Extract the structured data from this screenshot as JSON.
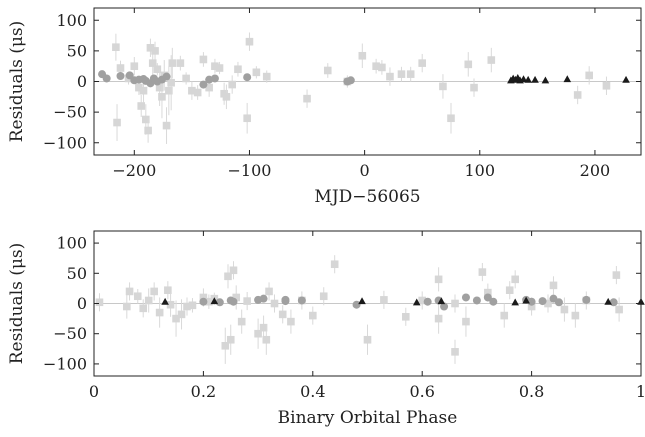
{
  "chart_data": [
    {
      "type": "scatter",
      "xlabel": "MJD−56065",
      "ylabel": "Residuals (μs)",
      "xlim": [
        -235,
        240
      ],
      "ylim": [
        -120,
        120
      ],
      "xticks": [
        -200,
        -100,
        0,
        100,
        200
      ],
      "xtick_labels": [
        "−200",
        "−100",
        "0",
        "100",
        "200"
      ],
      "yticks": [
        -100,
        -50,
        0,
        50,
        100
      ],
      "ytick_labels": [
        "−100",
        "−50",
        "0",
        "50",
        "100"
      ],
      "grid": false,
      "series": [
        {
          "marker": "square",
          "color": "#d6d6d6",
          "points": [
            [
              -216,
              56,
              22
            ],
            [
              -215,
              -67,
              30
            ],
            [
              -212,
              22,
              12
            ],
            [
              -205,
              5,
              10
            ],
            [
              -200,
              25,
              15
            ],
            [
              -196,
              -10,
              12
            ],
            [
              -194,
              -40,
              18
            ],
            [
              -192,
              -15,
              20
            ],
            [
              -190,
              -62,
              25
            ],
            [
              -188,
              -80,
              20
            ],
            [
              -186,
              55,
              15
            ],
            [
              -184,
              30,
              20
            ],
            [
              -182,
              50,
              15
            ],
            [
              -180,
              20,
              10
            ],
            [
              -178,
              -10,
              30
            ],
            [
              -176,
              -25,
              35
            ],
            [
              -174,
              10,
              25
            ],
            [
              -172,
              -72,
              30
            ],
            [
              -170,
              -15,
              40
            ],
            [
              -168,
              -2,
              45
            ],
            [
              -167,
              30,
              25
            ],
            [
              -160,
              30,
              12
            ],
            [
              -155,
              5,
              10
            ],
            [
              -150,
              -15,
              15
            ],
            [
              -145,
              -18,
              12
            ],
            [
              -140,
              36,
              12
            ],
            [
              -135,
              -10,
              15
            ],
            [
              -130,
              25,
              12
            ],
            [
              -126,
              22,
              10
            ],
            [
              -122,
              -20,
              18
            ],
            [
              -120,
              -25,
              20
            ],
            [
              -115,
              -5,
              15
            ],
            [
              -110,
              20,
              12
            ],
            [
              -102,
              -60,
              25
            ],
            [
              -100,
              65,
              15
            ],
            [
              -94,
              15,
              10
            ],
            [
              -85,
              8,
              10
            ],
            [
              -50,
              -28,
              15
            ],
            [
              -32,
              18,
              12
            ],
            [
              -15,
              0,
              10
            ],
            [
              -2,
              42,
              20
            ],
            [
              10,
              25,
              12
            ],
            [
              15,
              23,
              12
            ],
            [
              22,
              8,
              15
            ],
            [
              32,
              12,
              12
            ],
            [
              40,
              12,
              12
            ],
            [
              50,
              30,
              15
            ],
            [
              68,
              -8,
              20
            ],
            [
              75,
              -60,
              25
            ],
            [
              90,
              28,
              20
            ],
            [
              95,
              -10,
              15
            ],
            [
              110,
              35,
              20
            ],
            [
              185,
              -22,
              15
            ],
            [
              195,
              10,
              15
            ],
            [
              210,
              -7,
              15
            ]
          ]
        },
        {
          "marker": "circle",
          "color": "#a0a0a0",
          "points": [
            [
              -228,
              12,
              6
            ],
            [
              -224,
              5,
              6
            ],
            [
              -212,
              9,
              6
            ],
            [
              -204,
              10,
              6
            ],
            [
              -200,
              2,
              6
            ],
            [
              -196,
              3,
              6
            ],
            [
              -192,
              4,
              6
            ],
            [
              -190,
              1,
              6
            ],
            [
              -186,
              -3,
              6
            ],
            [
              -183,
              5,
              6
            ],
            [
              -180,
              0,
              6
            ],
            [
              -176,
              3,
              6
            ],
            [
              -172,
              8,
              6
            ],
            [
              -140,
              -5,
              6
            ],
            [
              -135,
              3,
              6
            ],
            [
              -130,
              5,
              6
            ],
            [
              -102,
              7,
              6
            ],
            [
              -15,
              0,
              6
            ],
            [
              -12,
              2,
              6
            ]
          ]
        },
        {
          "marker": "triangle",
          "color": "#1a1a1a",
          "points": [
            [
              127,
              2,
              3
            ],
            [
              129,
              5,
              3
            ],
            [
              131,
              3,
              3
            ],
            [
              133,
              6,
              3
            ],
            [
              135,
              2,
              3
            ],
            [
              138,
              4,
              3
            ],
            [
              142,
              3,
              3
            ],
            [
              148,
              3,
              3
            ],
            [
              157,
              2,
              3
            ],
            [
              176,
              4,
              3
            ],
            [
              227,
              3,
              3
            ]
          ]
        }
      ]
    },
    {
      "type": "scatter",
      "xlabel": "Binary Orbital Phase",
      "ylabel": "Residuals (μs)",
      "xlim": [
        0,
        1
      ],
      "ylim": [
        -120,
        120
      ],
      "xticks": [
        0,
        0.2,
        0.4,
        0.6,
        0.8,
        1
      ],
      "xtick_labels": [
        "0",
        "0.2",
        "0.4",
        "0.6",
        "0.8",
        "1"
      ],
      "yticks": [
        -100,
        -50,
        0,
        50,
        100
      ],
      "ytick_labels": [
        "−100",
        "−50",
        "0",
        "50",
        "100"
      ],
      "grid": false,
      "series": [
        {
          "marker": "square",
          "color": "#d6d6d6",
          "points": [
            [
              0.01,
              2,
              15
            ],
            [
              0.06,
              -5,
              20
            ],
            [
              0.065,
              20,
              15
            ],
            [
              0.08,
              12,
              12
            ],
            [
              0.09,
              -8,
              15
            ],
            [
              0.1,
              5,
              20
            ],
            [
              0.11,
              20,
              15
            ],
            [
              0.12,
              -15,
              25
            ],
            [
              0.135,
              22,
              15
            ],
            [
              0.14,
              -2,
              20
            ],
            [
              0.15,
              -25,
              30
            ],
            [
              0.16,
              -18,
              25
            ],
            [
              0.17,
              -5,
              15
            ],
            [
              0.18,
              -3,
              12
            ],
            [
              0.2,
              10,
              15
            ],
            [
              0.21,
              3,
              12
            ],
            [
              0.22,
              8,
              10
            ],
            [
              0.24,
              -70,
              30
            ],
            [
              0.245,
              45,
              20
            ],
            [
              0.25,
              -60,
              25
            ],
            [
              0.255,
              55,
              15
            ],
            [
              0.26,
              10,
              20
            ],
            [
              0.27,
              -30,
              20
            ],
            [
              0.28,
              4,
              15
            ],
            [
              0.3,
              -50,
              25
            ],
            [
              0.31,
              -40,
              20
            ],
            [
              0.315,
              -60,
              25
            ],
            [
              0.32,
              20,
              15
            ],
            [
              0.33,
              0,
              15
            ],
            [
              0.345,
              -18,
              15
            ],
            [
              0.36,
              -30,
              20
            ],
            [
              0.38,
              5,
              15
            ],
            [
              0.4,
              -20,
              15
            ],
            [
              0.42,
              12,
              15
            ],
            [
              0.44,
              65,
              15
            ],
            [
              0.5,
              -60,
              25
            ],
            [
              0.53,
              6,
              15
            ],
            [
              0.57,
              -22,
              15
            ],
            [
              0.6,
              5,
              15
            ],
            [
              0.63,
              -25,
              25
            ],
            [
              0.63,
              40,
              20
            ],
            [
              0.66,
              0,
              15
            ],
            [
              0.66,
              -80,
              20
            ],
            [
              0.68,
              -30,
              25
            ],
            [
              0.71,
              52,
              15
            ],
            [
              0.72,
              18,
              15
            ],
            [
              0.75,
              -20,
              20
            ],
            [
              0.76,
              22,
              15
            ],
            [
              0.77,
              40,
              15
            ],
            [
              0.8,
              -5,
              15
            ],
            [
              0.83,
              0,
              15
            ],
            [
              0.84,
              30,
              15
            ],
            [
              0.86,
              -10,
              20
            ],
            [
              0.88,
              -20,
              20
            ],
            [
              0.9,
              5,
              15
            ],
            [
              0.955,
              47,
              15
            ],
            [
              0.96,
              -10,
              20
            ]
          ]
        },
        {
          "marker": "circle",
          "color": "#a0a0a0",
          "points": [
            [
              0.2,
              3,
              6
            ],
            [
              0.23,
              2,
              6
            ],
            [
              0.25,
              5,
              6
            ],
            [
              0.255,
              3,
              6
            ],
            [
              0.3,
              6,
              6
            ],
            [
              0.31,
              8,
              6
            ],
            [
              0.35,
              4,
              6
            ],
            [
              0.35,
              6,
              6
            ],
            [
              0.38,
              5,
              6
            ],
            [
              0.48,
              -2,
              6
            ],
            [
              0.61,
              3,
              6
            ],
            [
              0.63,
              5,
              6
            ],
            [
              0.64,
              -5,
              6
            ],
            [
              0.68,
              10,
              6
            ],
            [
              0.7,
              5,
              6
            ],
            [
              0.72,
              10,
              6
            ],
            [
              0.73,
              3,
              6
            ],
            [
              0.79,
              6,
              6
            ],
            [
              0.8,
              3,
              6
            ],
            [
              0.82,
              4,
              6
            ],
            [
              0.84,
              8,
              6
            ],
            [
              0.85,
              2,
              6
            ],
            [
              0.9,
              6,
              6
            ],
            [
              0.95,
              2,
              6
            ]
          ]
        },
        {
          "marker": "triangle",
          "color": "#1a1a1a",
          "points": [
            [
              0.13,
              3,
              3
            ],
            [
              0.22,
              4,
              3
            ],
            [
              0.49,
              4,
              3
            ],
            [
              0.59,
              2,
              3
            ],
            [
              0.635,
              4,
              3
            ],
            [
              0.77,
              2,
              3
            ],
            [
              0.79,
              5,
              3
            ],
            [
              0.94,
              3,
              3
            ],
            [
              1.0,
              3,
              3
            ]
          ]
        }
      ]
    }
  ]
}
